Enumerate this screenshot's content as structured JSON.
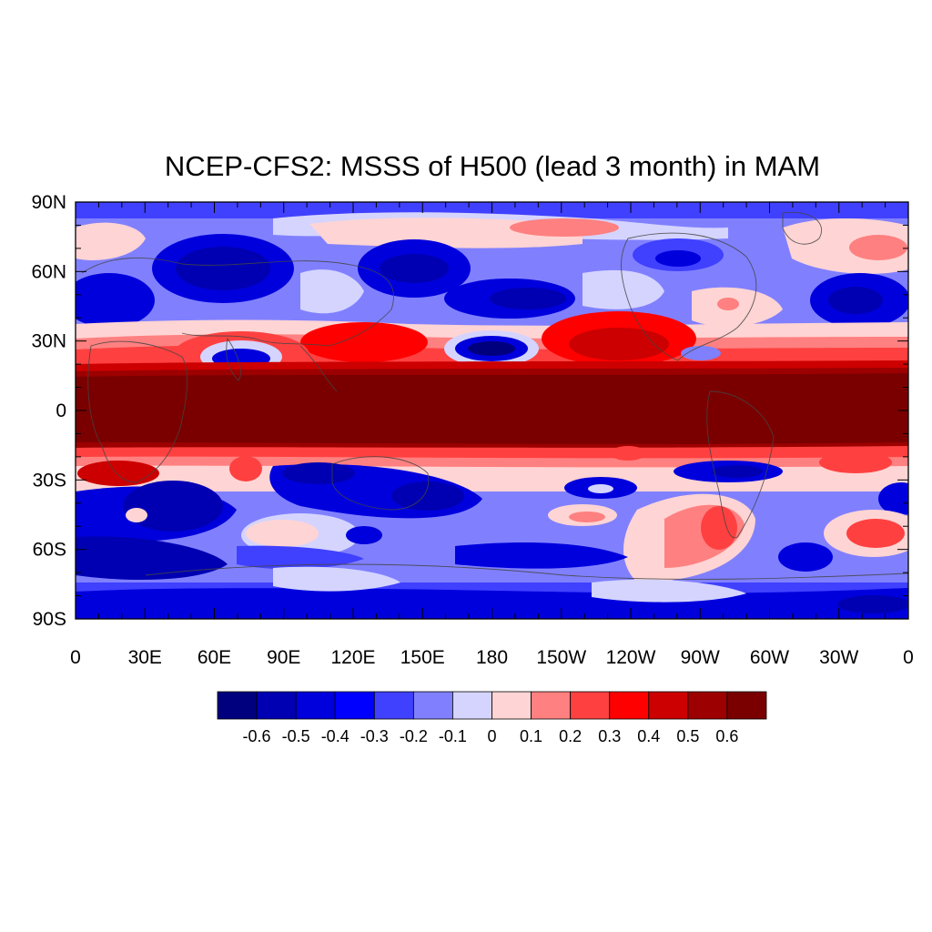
{
  "title": "NCEP-CFS2: MSSS of H500 (lead 3 month) in MAM",
  "map": {
    "lon_labels": [
      "0",
      "30E",
      "60E",
      "90E",
      "120E",
      "150E",
      "180",
      "150W",
      "120W",
      "90W",
      "60W",
      "30W",
      "0"
    ],
    "lat_labels": [
      "90N",
      "60N",
      "30N",
      "0",
      "30S",
      "60S",
      "90S"
    ],
    "lat_values": [
      90,
      60,
      30,
      0,
      -30,
      -60,
      -90
    ],
    "lon_range": [
      0,
      360
    ],
    "lat_range": [
      -90,
      90
    ]
  },
  "colorbar": {
    "colors": [
      "#00007f",
      "#0000b2",
      "#0000dd",
      "#0000ff",
      "#4040ff",
      "#8080ff",
      "#d4d4ff",
      "#ffd4d4",
      "#ff8080",
      "#ff4040",
      "#ff0000",
      "#cc0000",
      "#9c0000",
      "#7a0000"
    ],
    "labels": [
      "-0.6",
      "-0.5",
      "-0.4",
      "-0.3",
      "-0.2",
      "-0.1",
      "0",
      "0.1",
      "0.2",
      "0.3",
      "0.4",
      "0.5",
      "0.6"
    ]
  },
  "colors": {
    "coast": "#444444",
    "frame": "#000000"
  }
}
